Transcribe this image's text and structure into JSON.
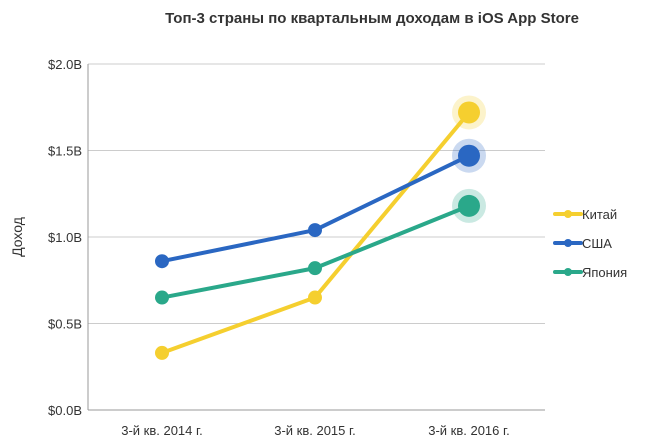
{
  "chart_data": {
    "type": "line",
    "title": "Топ-3 страны по квартальным доходам в iOS App Store",
    "xlabel": "",
    "ylabel": "Доход",
    "categories": [
      "3-й кв. 2014 г.",
      "3-й кв. 2015 г.",
      "3-й кв. 2016 г."
    ],
    "ylim": [
      0,
      2.0
    ],
    "yticks": [
      0,
      0.5,
      1.0,
      1.5,
      2.0
    ],
    "ytick_labels": [
      "$0.0B",
      "$0.5B",
      "$1.0B",
      "$1.5B",
      "$2.0B"
    ],
    "grid": true,
    "legend_position": "right",
    "last_point_highlighted": true,
    "series": [
      {
        "name": "Китай",
        "color": "#f5cf2f",
        "values": [
          0.33,
          0.65,
          1.72
        ]
      },
      {
        "name": "США",
        "color": "#2a67c2",
        "values": [
          0.86,
          1.04,
          1.47
        ]
      },
      {
        "name": "Япония",
        "color": "#2aa88a",
        "values": [
          0.65,
          0.82,
          1.18
        ]
      }
    ]
  }
}
